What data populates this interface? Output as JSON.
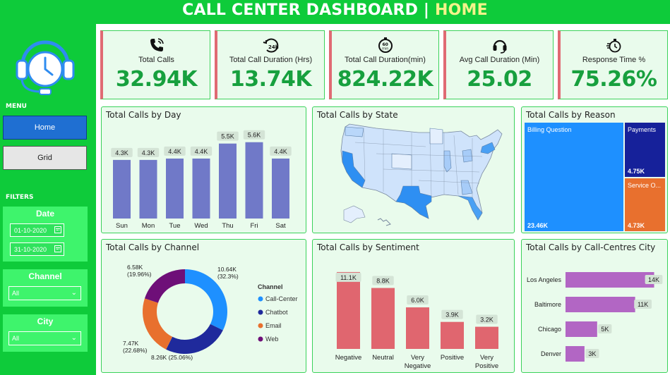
{
  "header": {
    "title": "CALL CENTER DASHBOARD |",
    "page": "HOME"
  },
  "sidebar": {
    "menu_label": "MENU",
    "nav": [
      {
        "label": "Home",
        "active": true
      },
      {
        "label": "Grid",
        "active": false
      }
    ],
    "filters_label": "FILTERS",
    "date": {
      "title": "Date",
      "start": "01-10-2020",
      "end": "31-10-2020"
    },
    "channel": {
      "title": "Channel",
      "value": "All"
    },
    "city": {
      "title": "City",
      "value": "All"
    }
  },
  "kpis": [
    {
      "label": "Total Calls",
      "value": "32.94K",
      "icon": "phone-ringing-icon"
    },
    {
      "label": "Total Call Duration (Hrs)",
      "value": "13.74K",
      "icon": "24h-clock-icon"
    },
    {
      "label": "Total Call Duration(min)",
      "value": "824.22K",
      "icon": "60-min-timer-icon"
    },
    {
      "label": "Avg Call Duration (Min)",
      "value": "25.02",
      "icon": "headset-icon"
    },
    {
      "label": "Response Time %",
      "value": "75.26%",
      "icon": "stopwatch-icon"
    }
  ],
  "colors": {
    "accent_green": "#17a03e",
    "bar_blue": "#7079c8",
    "bar_red": "#e0666f",
    "bar_purple": "#b266c4"
  },
  "chart_data": [
    {
      "type": "bar",
      "title": "Total Calls by Day",
      "categories": [
        "Sun",
        "Mon",
        "Tue",
        "Wed",
        "Thu",
        "Fri",
        "Sat"
      ],
      "values": [
        4.3,
        4.3,
        4.4,
        4.4,
        5.5,
        5.6,
        4.4
      ],
      "labels": [
        "4.3K",
        "4.3K",
        "4.4K",
        "4.4K",
        "5.5K",
        "5.6K",
        "4.4K"
      ],
      "ylim": [
        0,
        6
      ]
    },
    {
      "type": "pie",
      "title": "Total Calls by Channel",
      "legend_title": "Channel",
      "categories": [
        "Call-Center",
        "Chatbot",
        "Email",
        "Web"
      ],
      "values": [
        10.64,
        8.26,
        7.47,
        6.58
      ],
      "value_labels": [
        "10.64K",
        "8.26K",
        "7.47K",
        "6.58K"
      ],
      "pct_labels": [
        "(32.3%)",
        "(25.06%)",
        "(22.68%)",
        "(19.96%)"
      ],
      "colors": [
        "#1e90ff",
        "#1f2a9c",
        "#e8702e",
        "#6e0f78"
      ]
    },
    {
      "type": "bar",
      "title": "Total Calls by Sentiment",
      "categories": [
        [
          "Negative"
        ],
        [
          "Neutral"
        ],
        [
          "Very",
          "Negative"
        ],
        [
          "Positive"
        ],
        [
          "Very",
          "Positive"
        ]
      ],
      "values": [
        11.1,
        8.8,
        6.0,
        3.9,
        3.2
      ],
      "labels": [
        "11.1K",
        "8.8K",
        "6.0K",
        "3.9K",
        "3.2K"
      ],
      "ylim": [
        0,
        11.5
      ]
    },
    {
      "type": "bar",
      "orientation": "horizontal",
      "title": "Total Calls by Call-Centres City",
      "categories": [
        "Los Angeles",
        "Baltimore",
        "Chicago",
        "Denver"
      ],
      "values": [
        14,
        11,
        5,
        3
      ],
      "labels": [
        "14K",
        "11K",
        "5K",
        "3K"
      ],
      "xlim": [
        0,
        14.5
      ]
    }
  ],
  "treemap": {
    "title": "Total Calls by Reason",
    "items": [
      {
        "name": "Billing Question",
        "value": 23.46,
        "label": "23.46K",
        "color": "#1e90ff"
      },
      {
        "name": "Payments",
        "value": 4.75,
        "label": "4.75K",
        "color": "#16219a"
      },
      {
        "name": "Service O...",
        "value": 4.73,
        "label": "4.73K",
        "color": "#e8702e"
      }
    ]
  },
  "map": {
    "title": "Total Calls by State"
  }
}
